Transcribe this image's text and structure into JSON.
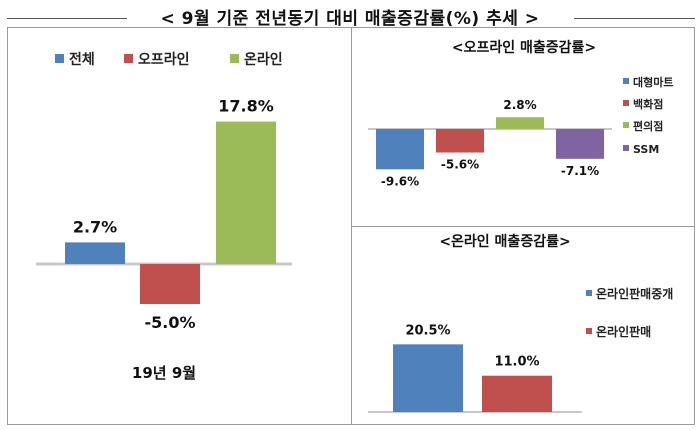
{
  "page_title": "< 9월 기준 전년동기 대비 매출증감률(%) 추세 >",
  "chart_data": [
    {
      "type": "bar",
      "title": "",
      "categories": [
        "전체",
        "오프라인",
        "온라인"
      ],
      "values": [
        2.7,
        -5.0,
        17.8
      ],
      "value_labels": [
        "2.7%",
        "-5.0%",
        "17.8%"
      ],
      "colors": [
        "#4F81BD",
        "#C0504D",
        "#9BBB59"
      ],
      "xlabel": "19년 9월",
      "ylabel": "",
      "ylim": [
        -6,
        18
      ],
      "grid": false,
      "legend": "top"
    },
    {
      "type": "bar",
      "title": "<오프라인 매출증감률>",
      "categories": [
        "대형마트",
        "백화점",
        "편의점",
        "SSM"
      ],
      "values": [
        -9.6,
        -5.6,
        2.8,
        -7.1
      ],
      "value_labels": [
        "-9.6%",
        "-5.6%",
        "2.8%",
        "-7.1%"
      ],
      "colors": [
        "#4F81BD",
        "#C0504D",
        "#9BBB59",
        "#8064A2"
      ],
      "xlabel": "",
      "ylabel": "",
      "ylim": [
        -10,
        3
      ],
      "grid": false,
      "legend": "right"
    },
    {
      "type": "bar",
      "title": "<온라인 매출증감률>",
      "categories": [
        "온라인판매중개",
        "온라인판매"
      ],
      "values": [
        20.5,
        11.0
      ],
      "value_labels": [
        "20.5%",
        "11.0%"
      ],
      "colors": [
        "#4F81BD",
        "#C0504D"
      ],
      "xlabel": "",
      "ylabel": "",
      "ylim": [
        0,
        21
      ],
      "grid": false,
      "legend": "right"
    }
  ]
}
